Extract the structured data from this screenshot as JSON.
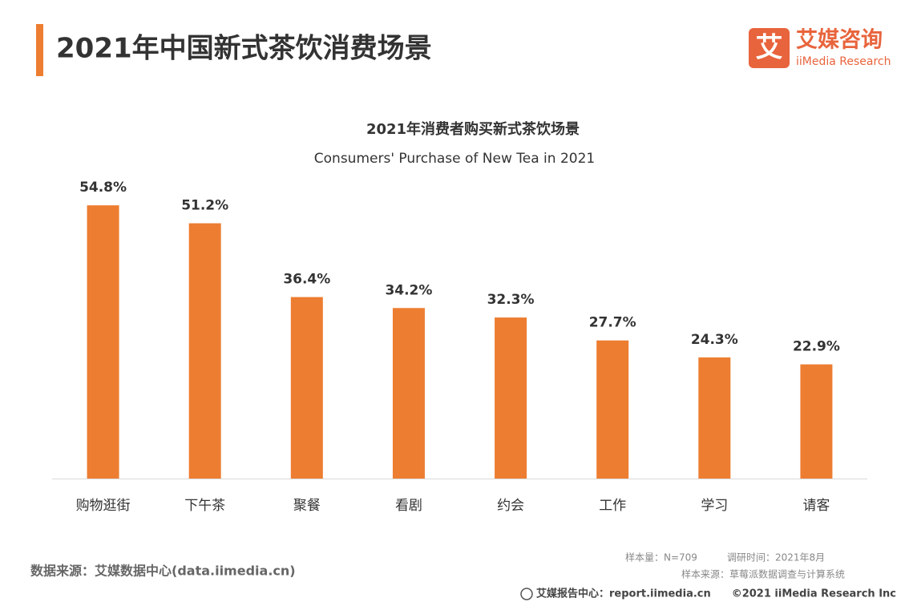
{
  "header": {
    "title": "2021年中国新式茶饮消费场景",
    "logo_icon": "艾",
    "logo_name": "艾媒咨询",
    "logo_sub": "iiMedia Research"
  },
  "chart_data": {
    "type": "bar",
    "title": "2021年消费者购买新式茶饮场景",
    "subtitle": "Consumers' Purchase of New Tea in 2021",
    "categories": [
      "购物逛街",
      "下午茶",
      "聚餐",
      "看剧",
      "约会",
      "工作",
      "学习",
      "请客"
    ],
    "values": [
      54.8,
      51.2,
      36.4,
      34.2,
      32.3,
      27.7,
      24.3,
      22.9
    ],
    "value_labels": [
      "54.8%",
      "51.2%",
      "36.4%",
      "34.2%",
      "32.3%",
      "27.7%",
      "24.3%",
      "22.9%"
    ],
    "color": "#ED7D31"
  },
  "footer": {
    "source": "数据来源：艾媒数据中心(data.iimedia.cn)",
    "sample_size": "样本量：N=709",
    "survey_time": "调研时间：2021年8月",
    "sample_source": "样本来源：草莓派数据调查与计算系统",
    "report_center": "艾媒报告中心：report.iimedia.cn",
    "copyright": "©2021  iiMedia Research  Inc"
  }
}
